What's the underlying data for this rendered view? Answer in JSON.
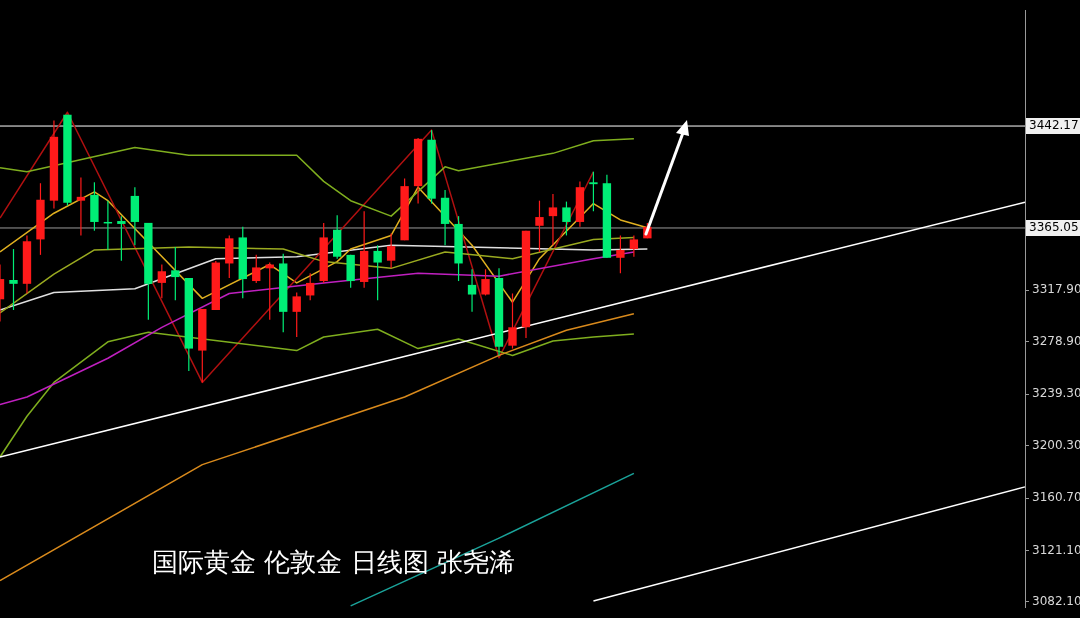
{
  "chart_data": {
    "type": "candlestick",
    "categories": [
      null,
      null,
      null,
      null,
      null,
      null,
      null,
      null,
      null,
      null,
      null,
      null,
      null,
      null,
      null,
      null,
      null,
      null,
      null,
      null,
      null,
      null,
      null,
      null,
      null,
      null,
      null,
      null,
      null,
      null,
      null,
      null,
      null,
      null,
      null,
      null,
      null,
      null,
      null,
      null,
      null,
      null,
      null,
      null,
      null,
      null,
      null,
      null,
      null,
      null,
      null,
      null,
      null,
      null,
      null,
      null,
      null,
      null,
      null,
      null,
      null,
      null,
      null,
      null,
      null,
      null,
      null,
      null,
      null,
      null,
      null,
      null,
      null,
      null,
      null,
      null,
      null
    ],
    "ohlc": [
      [
        3311.1,
        3337.4,
        3294.3,
        3326.4
      ],
      [
        3325.7,
        3349.1,
        3303.0,
        3322.8
      ],
      [
        3322.8,
        3359.4,
        3315.5,
        3355.0
      ],
      [
        3356.4,
        3398.9,
        3344.7,
        3386.4
      ],
      [
        3385.7,
        3446.4,
        3379.8,
        3434.0
      ],
      [
        3450.8,
        3450.8,
        3382.0,
        3384.2
      ],
      [
        3385.7,
        3403.3,
        3359.4,
        3388.6
      ],
      [
        3390.1,
        3399.6,
        3363.0,
        3369.6
      ],
      [
        3369.6,
        3385.7,
        3348.4,
        3368.9
      ],
      [
        3370.3,
        3374.0,
        3340.3,
        3368.1
      ],
      [
        3389.3,
        3395.9,
        3352.0,
        3369.6
      ],
      [
        3368.9,
        3368.9,
        3295.7,
        3322.8
      ],
      [
        3323.5,
        3337.4,
        3311.8,
        3332.3
      ],
      [
        3333.0,
        3350.6,
        3310.4,
        3327.9
      ],
      [
        3327.2,
        3327.2,
        3256.9,
        3273.8
      ],
      [
        3272.3,
        3303.8,
        3248.2,
        3303.8
      ],
      [
        3303.0,
        3340.0,
        3303.0,
        3338.9
      ],
      [
        3338.2,
        3359.4,
        3327.2,
        3357.2
      ],
      [
        3357.9,
        3365.9,
        3311.8,
        3326.4
      ],
      [
        3324.9,
        3344.7,
        3323.5,
        3335.2
      ],
      [
        3334.5,
        3338.9,
        3295.7,
        3337.4
      ],
      [
        3338.2,
        3345.5,
        3286.2,
        3301.6
      ],
      [
        3301.6,
        3316.2,
        3282.6,
        3313.3
      ],
      [
        3314.0,
        3330.8,
        3310.4,
        3323.5
      ],
      [
        3324.9,
        3368.9,
        3323.5,
        3357.9
      ],
      [
        3363.7,
        3374.7,
        3341.8,
        3343.3
      ],
      [
        3344.7,
        3344.7,
        3319.9,
        3324.9
      ],
      [
        3324.2,
        3377.7,
        3319.9,
        3347.7
      ],
      [
        3347.7,
        3352.0,
        3310.4,
        3338.9
      ],
      [
        3340.3,
        3360.8,
        3334.5,
        3351.3
      ],
      [
        3355.7,
        3402.5,
        3355.7,
        3396.7
      ],
      [
        3396.7,
        3433.2,
        3383.5,
        3432.5
      ],
      [
        3431.8,
        3439.1,
        3383.5,
        3387.2
      ],
      [
        3387.9,
        3393.8,
        3352.0,
        3368.1
      ],
      [
        3368.1,
        3374.0,
        3324.9,
        3338.2
      ],
      [
        3322.0,
        3333.8,
        3301.6,
        3314.7
      ],
      [
        3314.7,
        3333.8,
        3314.0,
        3326.4
      ],
      [
        3327.2,
        3334.5,
        3268.6,
        3275.2
      ],
      [
        3276.0,
        3315.5,
        3273.8,
        3289.9
      ],
      [
        3289.9,
        3363.0,
        3281.8,
        3363.0
      ],
      [
        3366.7,
        3385.7,
        3346.9,
        3373.3
      ],
      [
        3374.0,
        3390.8,
        3352.0,
        3380.6
      ],
      [
        3380.6,
        3385.0,
        3359.4,
        3369.6
      ],
      [
        3369.6,
        3400.3,
        3365.9,
        3395.9
      ],
      [
        3399.6,
        3407.6,
        3377.7,
        3398.2
      ],
      [
        3398.9,
        3405.4,
        3342.5,
        3342.5
      ],
      [
        3342.5,
        3359.4,
        3330.8,
        3348.4
      ],
      [
        3349.1,
        3359.4,
        3343.3,
        3356.4
      ],
      [
        3357.2,
        3368.9,
        3357.2,
        3365.9
      ],
      null,
      null,
      null,
      null,
      null,
      null,
      null,
      null,
      null,
      null,
      null,
      null,
      null,
      null,
      null,
      null,
      null,
      null,
      null,
      null,
      null,
      null,
      null,
      null,
      null,
      null,
      null,
      null
    ],
    "colors": [
      "#ff1a1a",
      "#00ee76",
      "#ff1a1a",
      "#ff1a1a",
      "#ff1a1a",
      "#00ee76",
      "#ff1a1a",
      "#00ee76",
      "#00ee76",
      "#00ee76",
      "#00ee76",
      "#00ee76",
      "#ff1a1a",
      "#00ee76",
      "#00ee76",
      "#ff1a1a",
      "#ff1a1a",
      "#ff1a1a",
      "#00ee76",
      "#ff1a1a",
      "#ff1a1a",
      "#00ee76",
      "#ff1a1a",
      "#ff1a1a",
      "#ff1a1a",
      "#00ee76",
      "#00ee76",
      "#ff1a1a",
      "#00ee76",
      "#ff1a1a",
      "#ff1a1a",
      "#ff1a1a",
      "#00ee76",
      "#00ee76",
      "#00ee76",
      "#00ee76",
      "#ff1a1a",
      "#00ee76",
      "#ff1a1a",
      "#ff1a1a",
      "#ff1a1a",
      "#ff1a1a",
      "#00ee76",
      "#ff1a1a",
      "#00ee76",
      "#00ee76",
      "#ff1a1a",
      "#ff1a1a",
      "#ff1a1a",
      null,
      null,
      null,
      null,
      null,
      null,
      null,
      null,
      null,
      null,
      null,
      null,
      null,
      null,
      null,
      null,
      null,
      null,
      null,
      null,
      null,
      null,
      null,
      null,
      null,
      null,
      null,
      null
    ],
    "series": [
      {
        "type": "line",
        "color": "#ffffff",
        "values": [
          3191.8,
          null,
          null,
          null,
          null,
          null,
          null,
          null,
          null,
          null,
          null,
          null,
          null,
          null,
          null,
          null,
          null,
          null,
          null,
          null,
          null,
          null,
          null,
          null,
          null,
          null,
          null,
          null,
          null,
          null,
          null,
          null,
          null,
          null,
          null,
          null,
          null,
          null,
          null,
          null,
          null,
          null,
          null,
          null,
          null,
          null,
          null,
          null,
          null,
          null,
          null,
          null,
          null,
          null,
          null,
          null,
          null,
          null,
          null,
          null,
          null,
          null,
          null,
          null,
          null,
          null,
          null,
          null,
          null,
          null,
          null,
          null,
          null,
          null,
          null,
          null,
          3384.5
        ]
      },
      {
        "type": "line",
        "color": "#ffffff",
        "values": [
          null,
          null,
          null,
          null,
          null,
          null,
          null,
          null,
          null,
          null,
          null,
          null,
          null,
          null,
          null,
          null,
          null,
          null,
          null,
          null,
          null,
          null,
          null,
          null,
          null,
          null,
          null,
          null,
          null,
          null,
          null,
          null,
          null,
          null,
          null,
          null,
          null,
          null,
          null,
          null,
          null,
          null,
          null,
          null,
          3082.8,
          null,
          null,
          null,
          null,
          null,
          null,
          null,
          null,
          null,
          null,
          null,
          null,
          null,
          null,
          null,
          null,
          null,
          null,
          null,
          null,
          null,
          null,
          null,
          null,
          null,
          null,
          null,
          null,
          null,
          null,
          null,
          3169.2
        ]
      },
      {
        "type": "line",
        "color": "#1aa39a",
        "values": [
          null,
          null,
          null,
          null,
          null,
          null,
          null,
          null,
          null,
          null,
          null,
          null,
          null,
          null,
          null,
          null,
          null,
          null,
          null,
          null,
          null,
          null,
          null,
          null,
          null,
          null,
          3079.2,
          null,
          null,
          null,
          null,
          null,
          null,
          null,
          null,
          null,
          null,
          3130.4,
          null,
          null,
          null,
          null,
          null,
          null,
          null,
          null,
          null,
          3179.4,
          null,
          null,
          null,
          null,
          null,
          null,
          null,
          null,
          null,
          null,
          null,
          null,
          null,
          null,
          null,
          null,
          null,
          null,
          null,
          null,
          null,
          null,
          null,
          null,
          null,
          null,
          null,
          null,
          null
        ]
      },
      {
        "type": "line",
        "color": "#d98a1c",
        "values": [
          3098.2,
          null,
          null,
          null,
          null,
          null,
          null,
          null,
          null,
          null,
          null,
          null,
          null,
          null,
          null,
          3186.0,
          null,
          null,
          null,
          null,
          null,
          null,
          null,
          null,
          null,
          null,
          null,
          null,
          null,
          null,
          3237.2,
          null,
          null,
          null,
          null,
          null,
          null,
          3268.7,
          null,
          null,
          null,
          null,
          3287.7,
          null,
          null,
          null,
          null,
          3300.1,
          null,
          null,
          null,
          null,
          null,
          null,
          null,
          null,
          null,
          null,
          null,
          null,
          null,
          null,
          null,
          null,
          null,
          null,
          null,
          null,
          null,
          null,
          null,
          null,
          null,
          null,
          null,
          null,
          null
        ]
      },
      {
        "type": "line",
        "color": "#c020c0",
        "values": [
          3231.4,
          null,
          3237.2,
          null,
          null,
          null,
          null,
          null,
          3266.5,
          null,
          null,
          null,
          3289.9,
          null,
          null,
          null,
          null,
          3315.5,
          null,
          null,
          null,
          null,
          null,
          null,
          3323.5,
          null,
          null,
          null,
          null,
          null,
          null,
          3330.8,
          null,
          null,
          null,
          null,
          null,
          3328.6,
          null,
          null,
          null,
          null,
          null,
          null,
          3341.8,
          null,
          null,
          3346.9,
          null,
          null,
          null,
          null,
          null,
          null,
          null,
          null,
          null,
          null,
          null,
          null,
          null,
          null,
          null,
          null,
          null,
          null,
          null,
          null,
          null,
          null,
          null,
          null,
          null,
          null,
          null,
          null,
          null
        ]
      },
      {
        "type": "line",
        "color": "#7fae1e",
        "values": [
          3410.6,
          null,
          3407.6,
          null,
          null,
          null,
          null,
          null,
          null,
          null,
          3426.0,
          null,
          null,
          null,
          3420.1,
          null,
          null,
          null,
          null,
          null,
          null,
          null,
          3420.1,
          null,
          3400.3,
          null,
          3385.7,
          null,
          null,
          3374.0,
          null,
          null,
          null,
          3411.3,
          3408.4,
          null,
          null,
          null,
          null,
          null,
          null,
          3421.5,
          null,
          null,
          3431.1,
          null,
          null,
          3432.5,
          null,
          null,
          null,
          null,
          null,
          null,
          null,
          null,
          null,
          null,
          null,
          null,
          null,
          null,
          null,
          null,
          null,
          null,
          null,
          null,
          null,
          null,
          null,
          null,
          null,
          null,
          null,
          null,
          null
        ]
      },
      {
        "type": "line",
        "color": "#7fae1e",
        "values": [
          3191.8,
          null,
          3222.6,
          null,
          3248.2,
          null,
          null,
          null,
          3278.9,
          null,
          null,
          3286.2,
          null,
          null,
          null,
          null,
          null,
          null,
          null,
          null,
          null,
          null,
          3272.3,
          null,
          3282.6,
          null,
          null,
          null,
          3288.4,
          null,
          null,
          3273.8,
          null,
          null,
          3281.1,
          null,
          null,
          null,
          3268.6,
          null,
          null,
          3279.6,
          null,
          null,
          3282.6,
          null,
          null,
          3284.9,
          null,
          null,
          null,
          null,
          null,
          null,
          null,
          null,
          null,
          null,
          null,
          null,
          null,
          null,
          null,
          null,
          null,
          null,
          null,
          null,
          null,
          null,
          null,
          null,
          null,
          null,
          null,
          null,
          null
        ]
      },
      {
        "type": "line",
        "color": "#9aaa20",
        "values": [
          3300.8,
          null,
          null,
          null,
          3330.1,
          null,
          null,
          3348.4,
          null,
          null,
          null,
          null,
          null,
          null,
          3350.6,
          null,
          null,
          null,
          null,
          null,
          null,
          3349.1,
          null,
          null,
          3339.6,
          null,
          null,
          null,
          null,
          3334.5,
          null,
          null,
          null,
          3346.9,
          null,
          null,
          null,
          null,
          3341.8,
          null,
          null,
          null,
          null,
          null,
          3356.4,
          null,
          null,
          3357.9,
          null,
          null,
          null,
          null,
          null,
          null,
          null,
          null,
          null,
          null,
          null,
          null,
          null,
          null,
          null,
          null,
          null,
          null,
          null,
          null,
          null,
          null,
          null,
          null,
          null,
          null,
          null,
          null,
          null
        ]
      },
      {
        "type": "line",
        "color": "#b01010",
        "values": [
          3372.5,
          null,
          null,
          null,
          null,
          3452.6,
          null,
          null,
          null,
          null,
          null,
          null,
          null,
          null,
          null,
          3248.2,
          null,
          null,
          null,
          null,
          null,
          null,
          null,
          null,
          null,
          null,
          null,
          null,
          null,
          null,
          null,
          null,
          3439.1,
          null,
          null,
          null,
          null,
          3266.9,
          null,
          null,
          null,
          null,
          null,
          null,
          3407.6,
          null,
          null,
          null,
          null,
          null,
          null,
          null,
          null,
          null,
          null,
          null,
          null,
          null,
          null,
          null,
          null,
          null,
          null,
          null,
          null,
          null,
          null,
          null,
          null,
          null,
          null,
          null,
          null,
          null,
          null,
          null,
          null
        ]
      },
      {
        "type": "line",
        "color": "#e0b020",
        "values": [
          3346.9,
          null,
          null,
          null,
          3376.2,
          null,
          null,
          3392.3,
          3385.7,
          null,
          null,
          null,
          null,
          null,
          null,
          3311.8,
          null,
          null,
          null,
          null,
          3337.4,
          null,
          3323.5,
          null,
          null,
          3339.6,
          3349.1,
          null,
          null,
          3359.4,
          null,
          3395.9,
          null,
          null,
          null,
          3352.0,
          null,
          null,
          3308.9,
          null,
          3341.8,
          null,
          null,
          null,
          3383.5,
          null,
          3371.1,
          null,
          3365.2,
          null,
          null,
          null,
          null,
          null,
          null,
          null,
          null,
          null,
          null,
          null,
          null,
          null,
          null,
          null,
          null,
          null,
          null,
          null,
          null,
          null,
          null,
          null,
          null,
          null,
          null,
          null,
          null
        ]
      },
      {
        "type": "line",
        "color": "#e0e0e0",
        "values": [
          3303.0,
          null,
          null,
          null,
          3316.2,
          null,
          null,
          null,
          null,
          null,
          3319.1,
          null,
          null,
          null,
          null,
          null,
          3341.8,
          null,
          null,
          null,
          null,
          null,
          3343.3,
          null,
          null,
          null,
          null,
          null,
          null,
          3352.0,
          null,
          null,
          null,
          null,
          null,
          null,
          null,
          null,
          null,
          null,
          null,
          null,
          null,
          null,
          3348.4,
          null,
          null,
          null,
          3349.1,
          null,
          null,
          null,
          null,
          null,
          null,
          null,
          null,
          null,
          null,
          null,
          null,
          null,
          null,
          null,
          null,
          null,
          null,
          null,
          null,
          null,
          null,
          null,
          null,
          null,
          null,
          null,
          null
        ]
      }
    ],
    "ylim": [
      3077.7,
      3529.8
    ],
    "yticks": [
      {
        "value": 3082.1,
        "label": "3082.10"
      },
      {
        "value": 3121.1,
        "label": "3121.10"
      },
      {
        "value": 3160.7,
        "label": "3160.70"
      },
      {
        "value": 3200.3,
        "label": "3200.30"
      },
      {
        "value": 3239.3,
        "label": "3239.30"
      },
      {
        "value": 3278.9,
        "label": "3278.90"
      },
      {
        "value": 3317.9,
        "label": "3317.90"
      }
    ],
    "tick_labels": "y",
    "ref_lines": [
      {
        "axis": "y",
        "value": 3442.17,
        "label": "3442.17",
        "color": "#ffffff"
      },
      {
        "axis": "y",
        "value": 3365.05,
        "label": "3365.05",
        "color": "#9a9a9a"
      }
    ],
    "annotations": [
      "国际黄金 伦敦金 日线图 张尧浠"
    ]
  }
}
